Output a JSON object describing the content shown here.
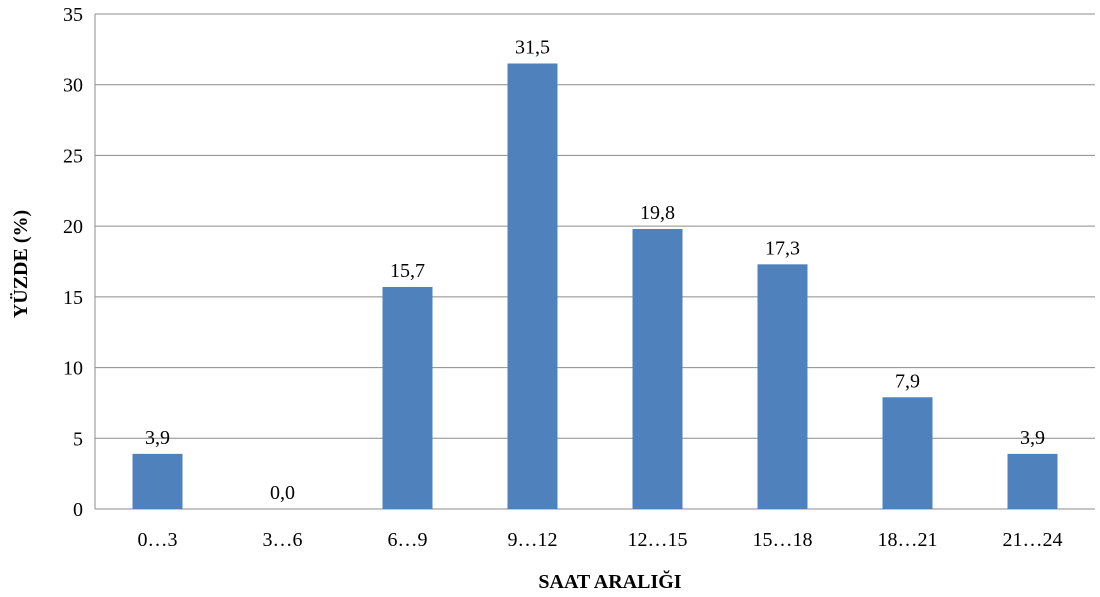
{
  "chart_data": {
    "type": "bar",
    "categories": [
      "0…3",
      "3…6",
      "6…9",
      "9…12",
      "12…15",
      "15…18",
      "18…21",
      "21…24"
    ],
    "values": [
      3.9,
      0.0,
      15.7,
      31.5,
      19.8,
      17.3,
      7.9,
      3.9
    ],
    "data_labels": [
      "3,9",
      "0,0",
      "15,7",
      "31,5",
      "19,8",
      "17,3",
      "7,9",
      "3,9"
    ],
    "xlabel": "SAAT ARALIĞI",
    "ylabel": "YÜZDE (%)",
    "ylim": [
      0,
      35
    ],
    "yticks": [
      0,
      5,
      10,
      15,
      20,
      25,
      30,
      35
    ],
    "grid": true,
    "bar_color": "#4f81bd"
  }
}
